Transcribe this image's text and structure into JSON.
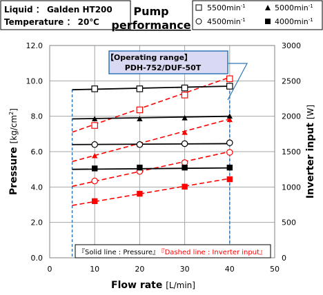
{
  "header": {
    "liquid_label": "Liquid ： Galden HT200",
    "temperature_label": "Temperature ： 20℃",
    "title_line1": "Pump",
    "title_line2": "performance"
  },
  "legend": {
    "items": [
      {
        "marker": "square-open",
        "label": "5500min",
        "sup": "-1"
      },
      {
        "marker": "triangle-filled",
        "label": "5000min",
        "sup": "-1"
      },
      {
        "marker": "circle-open",
        "label": "4500min",
        "sup": "-1"
      },
      {
        "marker": "square-filled",
        "label": "4000min",
        "sup": "-1"
      }
    ]
  },
  "callout": {
    "line1": "【Operating range】",
    "line2": "PDH-752/DUF-50T"
  },
  "note": {
    "solid_text": "『Solid line : Pressure』",
    "dashed_text": "『Dashed line : Inverter input』"
  },
  "colors": {
    "pressure": "#000000",
    "inverter": "#ff0000",
    "range": "#2e75b6",
    "callout_bg": "#d9d9f3"
  },
  "chart_data": {
    "type": "line",
    "xlabel": "Flow rate",
    "xlabel_unit": "[L/min]",
    "ylabel": "Pressure",
    "ylabel_unit": "[kg/cm",
    "ylabel_sup": "2",
    "ylabel_end": "]",
    "y2label": "Inverter input",
    "y2label_unit": "[W]",
    "xlim": [
      0,
      50
    ],
    "ylim": [
      0,
      12
    ],
    "y2lim": [
      0,
      3000
    ],
    "xticks": [
      "0",
      "10",
      "20",
      "30",
      "40",
      "50"
    ],
    "yticks": [
      "0.0",
      "2.0",
      "4.0",
      "6.0",
      "8.0",
      "10.0",
      "12.0"
    ],
    "y2ticks": [
      "0",
      "500",
      "1000",
      "1500",
      "2000",
      "2500",
      "3000"
    ],
    "x": [
      10,
      20,
      30,
      40
    ],
    "pressure_series": [
      {
        "speed": "5500min-1",
        "marker": "square-open",
        "values": [
          9.55,
          9.55,
          9.6,
          9.7
        ],
        "line_x": [
          5,
          40
        ],
        "line_y": [
          9.5,
          9.7
        ]
      },
      {
        "speed": "5000min-1",
        "marker": "triangle-filled",
        "values": [
          7.85,
          7.85,
          7.9,
          8.0
        ],
        "line_x": [
          5,
          40
        ],
        "line_y": [
          7.85,
          8.0
        ]
      },
      {
        "speed": "4500min-1",
        "marker": "circle-open",
        "values": [
          6.4,
          6.4,
          6.45,
          6.5
        ],
        "line_x": [
          5,
          40
        ],
        "line_y": [
          6.4,
          6.45
        ]
      },
      {
        "speed": "4000min-1",
        "marker": "square-filled",
        "values": [
          5.05,
          5.1,
          5.1,
          5.1
        ],
        "line_x": [
          5,
          40
        ],
        "line_y": [
          5.0,
          5.08
        ]
      }
    ],
    "inverter_series": [
      {
        "speed": "5500min-1",
        "marker": "square-open",
        "values": [
          1870,
          2090,
          2300,
          2530
        ],
        "line_x": [
          5,
          40
        ],
        "line_y": [
          1775,
          2550
        ]
      },
      {
        "speed": "5000min-1",
        "marker": "triangle-filled",
        "values": [
          1440,
          1600,
          1770,
          1950
        ],
        "line_x": [
          5,
          40
        ],
        "line_y": [
          1360,
          1960
        ]
      },
      {
        "speed": "4500min-1",
        "marker": "circle-open",
        "values": [
          1085,
          1220,
          1345,
          1490
        ],
        "line_x": [
          5,
          40
        ],
        "line_y": [
          1010,
          1500
        ]
      },
      {
        "speed": "4000min-1",
        "marker": "square-filled",
        "values": [
          800,
          905,
          1005,
          1110
        ],
        "line_x": [
          5,
          40
        ],
        "line_y": [
          740,
          1120
        ]
      }
    ],
    "operating_range": {
      "x": [
        5,
        40
      ],
      "top": [
        9.5,
        9.7
      ]
    },
    "grid": true
  }
}
